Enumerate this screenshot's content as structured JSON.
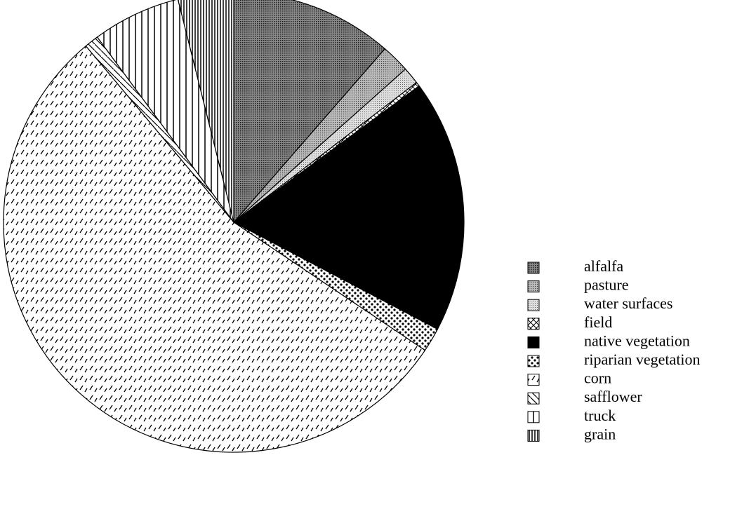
{
  "chart_data": {
    "type": "pie",
    "categories": [
      "alfalfa",
      "pasture",
      "water surfaces",
      "field",
      "native vegetation",
      "riparian vegetation",
      "corn",
      "safflower",
      "truck",
      "grain"
    ],
    "values": [
      11.4,
      2,
      1.2,
      0.3,
      17.8,
      1.7,
      54.5,
      1,
      6.2,
      3.9
    ]
  }
}
